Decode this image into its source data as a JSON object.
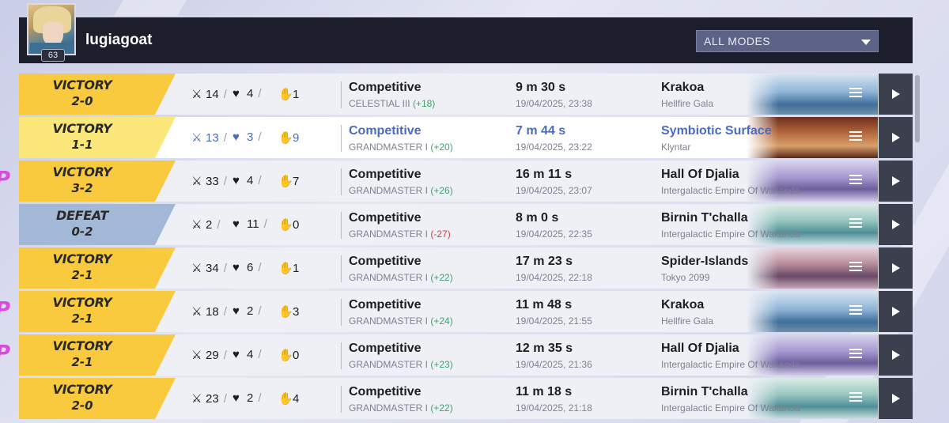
{
  "profile": {
    "username": "lugiagoat",
    "level": "63"
  },
  "filter": {
    "mode_selected": "ALL MODES"
  },
  "matches": [
    {
      "result": "VICTORY",
      "score": "2-0",
      "kills": "14",
      "deaths": "4",
      "assists": "1",
      "mode": "Competitive",
      "rank": "CELESTIAL III",
      "delta": "(+18)",
      "delta_dir": "up",
      "duration": "9 m 30 s",
      "date": "19/04/2025, 23:38",
      "map": "Krakoa",
      "region": "Hellfire Gala",
      "map_key": "krakoa",
      "highlighted": false
    },
    {
      "result": "VICTORY",
      "score": "1-1",
      "kills": "13",
      "deaths": "3",
      "assists": "9",
      "mode": "Competitive",
      "rank": "GRANDMASTER I",
      "delta": "(+20)",
      "delta_dir": "up",
      "duration": "7 m 44 s",
      "date": "19/04/2025, 23:22",
      "map": "Symbiotic Surface",
      "region": "Klyntar",
      "map_key": "symbiotic",
      "highlighted": true
    },
    {
      "result": "VICTORY",
      "score": "3-2",
      "kills": "33",
      "deaths": "4",
      "assists": "7",
      "mode": "Competitive",
      "rank": "GRANDMASTER I",
      "delta": "(+26)",
      "delta_dir": "up",
      "duration": "16 m 11 s",
      "date": "19/04/2025, 23:07",
      "map": "Hall Of Djalia",
      "region": "Intergalactic Empire Of Wakanda",
      "map_key": "djalia",
      "highlighted": false
    },
    {
      "result": "DEFEAT",
      "score": "0-2",
      "kills": "2",
      "deaths": "11",
      "assists": "0",
      "mode": "Competitive",
      "rank": "GRANDMASTER I",
      "delta": "(-27)",
      "delta_dir": "down",
      "duration": "8 m 0 s",
      "date": "19/04/2025, 22:35",
      "map": "Birnin T'challa",
      "region": "Intergalactic Empire Of Wakanda",
      "map_key": "birnin",
      "highlighted": false
    },
    {
      "result": "VICTORY",
      "score": "2-1",
      "kills": "34",
      "deaths": "6",
      "assists": "1",
      "mode": "Competitive",
      "rank": "GRANDMASTER I",
      "delta": "(+22)",
      "delta_dir": "up",
      "duration": "17 m 23 s",
      "date": "19/04/2025, 22:18",
      "map": "Spider-Islands",
      "region": "Tokyo 2099",
      "map_key": "spider",
      "highlighted": false
    },
    {
      "result": "VICTORY",
      "score": "2-1",
      "kills": "18",
      "deaths": "2",
      "assists": "3",
      "mode": "Competitive",
      "rank": "GRANDMASTER I",
      "delta": "(+24)",
      "delta_dir": "up",
      "duration": "11 m 48 s",
      "date": "19/04/2025, 21:55",
      "map": "Krakoa",
      "region": "Hellfire Gala",
      "map_key": "krakoa",
      "highlighted": false
    },
    {
      "result": "VICTORY",
      "score": "2-1",
      "kills": "29",
      "deaths": "4",
      "assists": "0",
      "mode": "Competitive",
      "rank": "GRANDMASTER I",
      "delta": "(+23)",
      "delta_dir": "up",
      "duration": "12 m 35 s",
      "date": "19/04/2025, 21:36",
      "map": "Hall Of Djalia",
      "region": "Intergalactic Empire Of Wakanda",
      "map_key": "djalia",
      "highlighted": false
    },
    {
      "result": "VICTORY",
      "score": "2-0",
      "kills": "23",
      "deaths": "2",
      "assists": "4",
      "mode": "Competitive",
      "rank": "GRANDMASTER I",
      "delta": "(+22)",
      "delta_dir": "up",
      "duration": "11 m 18 s",
      "date": "19/04/2025, 21:18",
      "map": "Birnin T'challa",
      "region": "Intergalactic Empire Of Wakanda",
      "map_key": "birnin",
      "highlighted": false
    }
  ],
  "icons": {
    "kills": "crossed-swords-icon",
    "deaths": "broken-heart-icon",
    "assists": "helping-hand-icon",
    "details": "menu-lines-icon",
    "replay": "play-icon"
  },
  "colors": {
    "victory": "#f9c93e",
    "victory_highlight": "#fbe77a",
    "defeat": "#a3b7d7",
    "accent": "#4a6bbf",
    "positive": "#3aa56a",
    "negative": "#d04040"
  }
}
